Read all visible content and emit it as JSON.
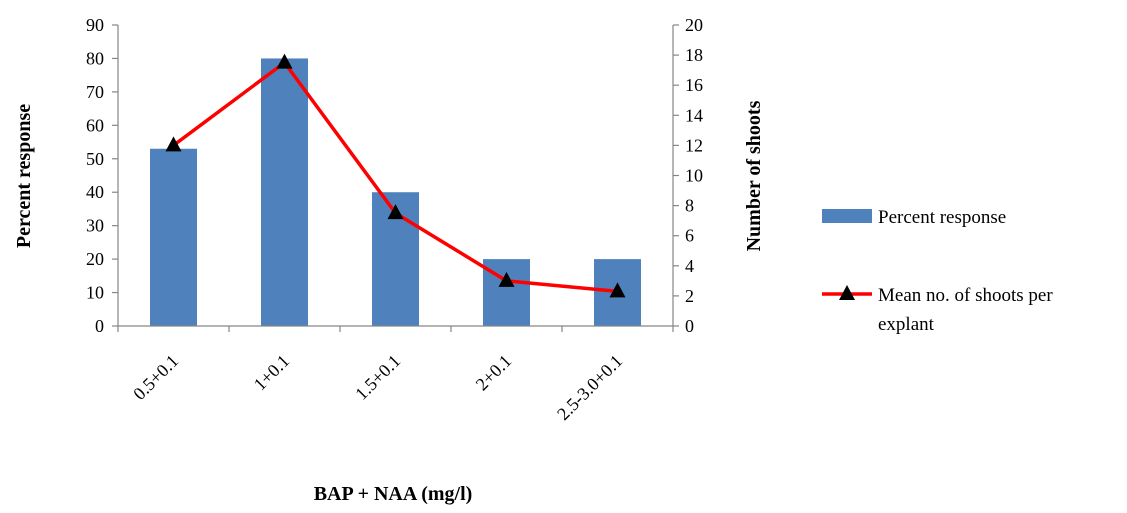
{
  "chart_data": {
    "type": "bar",
    "title": "",
    "xlabel": "BAP + NAA (mg/l)",
    "ylabel": "Percent response",
    "y2label": "Number of shoots",
    "categories": [
      "0.5+0.1",
      "1+0.1",
      "1.5+0.1",
      "2+0.1",
      "2.5-3.0+0.1"
    ],
    "ylim": [
      0,
      90
    ],
    "y_ticks": [
      "0",
      "10",
      "20",
      "30",
      "40",
      "50",
      "60",
      "70",
      "80",
      "90"
    ],
    "y2lim": [
      0,
      20
    ],
    "y2_ticks": [
      "0",
      "2",
      "4",
      "6",
      "8",
      "10",
      "12",
      "14",
      "16",
      "18",
      "20"
    ],
    "grid": false,
    "legend_position": "right",
    "series": [
      {
        "name": "Percent response",
        "type": "bar",
        "axis": "left",
        "color": "#4f81bd",
        "values": [
          53,
          80,
          40,
          20,
          20
        ]
      },
      {
        "name": "Mean no. of shoots per explant",
        "type": "line",
        "axis": "right",
        "color": "#ff0000",
        "marker": "triangle",
        "marker_color": "#000000",
        "values": [
          12,
          17.5,
          7.5,
          3,
          2.3
        ]
      }
    ]
  }
}
